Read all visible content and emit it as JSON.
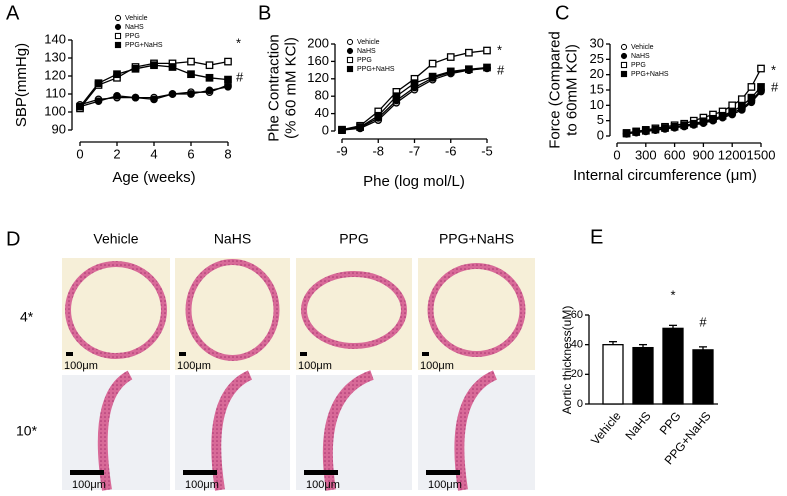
{
  "chart_data": [
    {
      "type": "line",
      "panel": "A",
      "xlabel": "Age (weeks)",
      "ylabel": [
        "SBP(mmHg)"
      ],
      "x": [
        0,
        1,
        2,
        3,
        4,
        5,
        6,
        7,
        8
      ],
      "xlim": [
        0,
        8
      ],
      "xticks": [
        0,
        2,
        4,
        6,
        8
      ],
      "ylim": [
        90,
        140
      ],
      "yticks": [
        90,
        100,
        110,
        120,
        130,
        140
      ],
      "series": [
        {
          "name": "Vehicle",
          "color": "#000",
          "marker": "circle",
          "fill": "#fff",
          "values": [
            104,
            107,
            108,
            108,
            108,
            110,
            111,
            111,
            115
          ]
        },
        {
          "name": "NaHS",
          "color": "#000",
          "marker": "circle",
          "fill": "#000",
          "values": [
            103,
            106,
            109,
            108,
            107,
            110,
            110,
            112,
            114
          ]
        },
        {
          "name": "PPG",
          "color": "#000",
          "marker": "square",
          "fill": "#fff",
          "values": [
            102,
            115,
            119,
            125,
            127,
            127,
            128,
            126,
            128
          ]
        },
        {
          "name": "PPG+NaHS",
          "color": "#000",
          "marker": "square",
          "fill": "#000",
          "values": [
            103,
            116,
            121,
            124,
            126,
            125,
            121,
            119,
            118
          ]
        }
      ],
      "annotations": [
        "*",
        "#"
      ]
    },
    {
      "type": "line",
      "panel": "B",
      "xlabel": "Phe (log mol/L)",
      "ylabel": [
        "Phe Contraction",
        "(% 60 mM KCl)"
      ],
      "x": [
        -9,
        -8.5,
        -8,
        -7.5,
        -7,
        -6.5,
        -6,
        -5.5,
        -5
      ],
      "xlim": [
        -9,
        -5
      ],
      "xticks": [
        -9,
        -8,
        -7,
        -6,
        -5
      ],
      "ylim": [
        0,
        200
      ],
      "yticks": [
        0,
        40,
        80,
        120,
        160,
        200
      ],
      "series": [
        {
          "name": "Vehicle",
          "color": "#000",
          "marker": "circle",
          "fill": "#fff",
          "values": [
            2,
            6,
            25,
            65,
            95,
            118,
            132,
            140,
            144
          ]
        },
        {
          "name": "NaHS",
          "color": "#000",
          "marker": "circle",
          "fill": "#000",
          "values": [
            2,
            8,
            30,
            70,
            100,
            122,
            135,
            140,
            145
          ]
        },
        {
          "name": "PPG",
          "color": "#000",
          "marker": "square",
          "fill": "#fff",
          "values": [
            3,
            12,
            45,
            90,
            120,
            155,
            170,
            180,
            185
          ]
        },
        {
          "name": "PPG+NaHS",
          "color": "#000",
          "marker": "square",
          "fill": "#000",
          "values": [
            2,
            9,
            35,
            80,
            110,
            125,
            137,
            142,
            146
          ]
        }
      ],
      "annotations": [
        "*",
        "#"
      ]
    },
    {
      "type": "line",
      "panel": "C",
      "xlabel": "Internal circumference (μm)",
      "ylabel": [
        "Force (Compared",
        "to 60mM KCl)"
      ],
      "x": [
        100,
        200,
        300,
        400,
        500,
        600,
        700,
        800,
        900,
        1000,
        1100,
        1200,
        1300,
        1400,
        1500
      ],
      "xlim": [
        0,
        1500
      ],
      "xticks": [
        0,
        300,
        600,
        900,
        1200,
        1500
      ],
      "ylim": [
        0,
        30
      ],
      "yticks": [
        0,
        5,
        10,
        15,
        20,
        25,
        30
      ],
      "series": [
        {
          "name": "Vehicle",
          "color": "#000",
          "marker": "circle",
          "fill": "#fff",
          "values": [
            0.8,
            1.2,
            1.6,
            2,
            2.4,
            2.8,
            3.3,
            3.8,
            4.5,
            5.3,
            6.3,
            7.5,
            9,
            11.5,
            15
          ]
        },
        {
          "name": "NaHS",
          "color": "#000",
          "marker": "circle",
          "fill": "#000",
          "values": [
            0.7,
            1.1,
            1.5,
            1.9,
            2.3,
            2.7,
            3.1,
            3.6,
            4.2,
            5,
            6,
            7,
            8.5,
            11,
            14.5
          ]
        },
        {
          "name": "PPG",
          "color": "#000",
          "marker": "square",
          "fill": "#fff",
          "values": [
            1,
            1.5,
            2,
            2.5,
            3,
            3.5,
            4,
            5,
            6,
            7,
            8,
            10,
            12,
            16,
            22
          ]
        },
        {
          "name": "PPG+NaHS",
          "color": "#000",
          "marker": "square",
          "fill": "#000",
          "values": [
            0.8,
            1.3,
            1.7,
            2.1,
            2.6,
            3,
            3.5,
            4,
            4.8,
            5.6,
            6.6,
            8,
            9.8,
            12.5,
            16
          ]
        }
      ],
      "annotations": [
        "*",
        "#"
      ]
    },
    {
      "type": "bar",
      "panel": "E",
      "ylabel": [
        "Aortic thickness(uM)"
      ],
      "categories": [
        "Vehicle",
        "NaHS",
        "PPG",
        "PPG+NaHS"
      ],
      "values": [
        40,
        38,
        51,
        36.5
      ],
      "colors": [
        "#fff",
        "#000",
        "#000",
        "#000"
      ],
      "ylim": [
        0,
        60
      ],
      "yticks": [
        0,
        20,
        40,
        60
      ],
      "annotations": [
        "*",
        "#"
      ]
    }
  ],
  "panel_d": {
    "panel": "D",
    "columns": [
      "Vehicle",
      "NaHS",
      "PPG",
      "PPG+NaHS"
    ],
    "rows": [
      "4*",
      "10*"
    ],
    "scale_bars": [
      [
        "100μm",
        "100μm",
        "100μm",
        "100μm"
      ],
      [
        "100μm",
        "100μm",
        "100μm",
        "100μm"
      ]
    ]
  }
}
